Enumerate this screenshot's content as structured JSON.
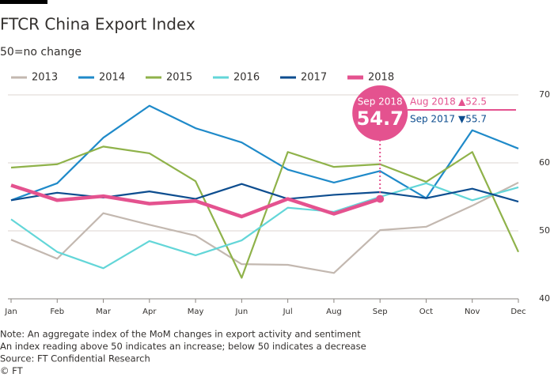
{
  "chart_data": {
    "type": "line",
    "title": "FTCR China Export Index",
    "subtitle": "50=no change",
    "categories": [
      "Jan",
      "Feb",
      "Mar",
      "Apr",
      "May",
      "Jun",
      "Jul",
      "Aug",
      "Sep",
      "Oct",
      "Nov",
      "Dec"
    ],
    "series": [
      {
        "name": "2013",
        "color": "#c3b8b0",
        "values": [
          48.7,
          45.9,
          52.6,
          50.9,
          49.3,
          45.1,
          45.0,
          43.8,
          50.1,
          50.6,
          53.7,
          57.1
        ]
      },
      {
        "name": "2014",
        "color": "#1f8ac9",
        "values": [
          54.5,
          57.0,
          63.7,
          68.4,
          65.1,
          63.0,
          59.0,
          57.1,
          58.8,
          54.8,
          64.8,
          62.1
        ]
      },
      {
        "name": "2015",
        "color": "#8fb24a",
        "values": [
          59.3,
          59.8,
          62.4,
          61.4,
          57.3,
          43.1,
          61.6,
          59.4,
          59.8,
          57.2,
          61.6,
          46.9
        ]
      },
      {
        "name": "2016",
        "color": "#63d6d8",
        "values": [
          51.7,
          46.9,
          44.5,
          48.5,
          46.4,
          48.6,
          53.4,
          52.8,
          55.0,
          57.0,
          54.5,
          56.4
        ]
      },
      {
        "name": "2017",
        "color": "#0d4d8f",
        "values": [
          54.5,
          55.6,
          54.9,
          55.8,
          54.7,
          56.9,
          54.7,
          55.3,
          55.7,
          54.8,
          56.2,
          54.3
        ]
      },
      {
        "name": "2018",
        "color": "#e4528f",
        "values": [
          56.7,
          54.5,
          55.1,
          54.0,
          54.4,
          52.1,
          54.7,
          52.5,
          54.7,
          null,
          null,
          null
        ]
      }
    ],
    "ylim": [
      40,
      70
    ],
    "yticks": [
      40,
      50,
      60,
      70
    ],
    "grid": true,
    "annotations": {
      "current_label": "Sep 2018",
      "current_value": "54.7",
      "prev_month": "Aug 2018",
      "prev_month_value": "▲52.5",
      "prev_year": "Sep 2017",
      "prev_year_value": "▼55.7"
    },
    "notes": [
      "Note: An aggregate index of the MoM changes in export activity and sentiment",
      "An index reading above 50 indicates an increase; below 50 indicates a decrease",
      "Source: FT Confidential Research",
      "© FT"
    ]
  }
}
